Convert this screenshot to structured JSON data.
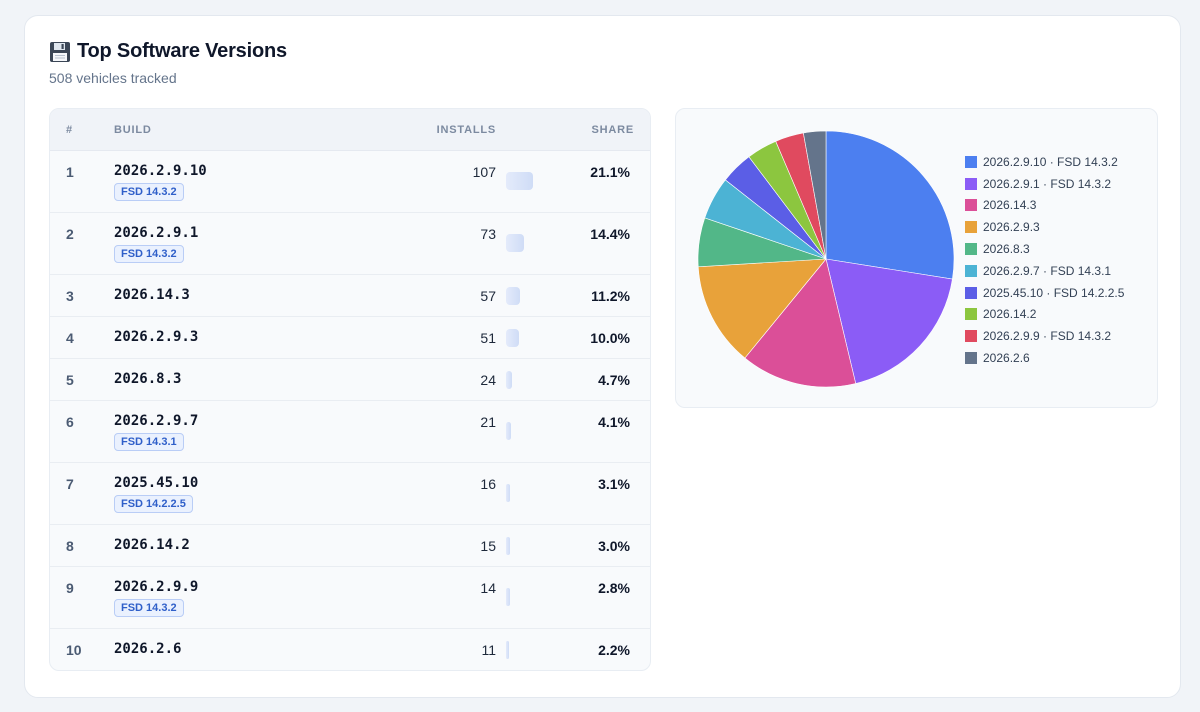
{
  "header": {
    "title": "Top Software Versions",
    "subtitle": "508 vehicles tracked",
    "icon": "floppy-disk-icon"
  },
  "table": {
    "columns": {
      "rank": "#",
      "build": "BUILD",
      "installs": "INSTALLS",
      "share": "SHARE"
    },
    "rows": [
      {
        "rank": "1",
        "build": "2026.2.9.10",
        "fsd": "FSD 14.3.2",
        "installs": "107",
        "share": "21.1%",
        "share_value": 21.1
      },
      {
        "rank": "2",
        "build": "2026.2.9.1",
        "fsd": "FSD 14.3.2",
        "installs": "73",
        "share": "14.4%",
        "share_value": 14.4
      },
      {
        "rank": "3",
        "build": "2026.14.3",
        "fsd": "",
        "installs": "57",
        "share": "11.2%",
        "share_value": 11.2
      },
      {
        "rank": "4",
        "build": "2026.2.9.3",
        "fsd": "",
        "installs": "51",
        "share": "10.0%",
        "share_value": 10.0
      },
      {
        "rank": "5",
        "build": "2026.8.3",
        "fsd": "",
        "installs": "24",
        "share": "4.7%",
        "share_value": 4.7
      },
      {
        "rank": "6",
        "build": "2026.2.9.7",
        "fsd": "FSD 14.3.1",
        "installs": "21",
        "share": "4.1%",
        "share_value": 4.1
      },
      {
        "rank": "7",
        "build": "2025.45.10",
        "fsd": "FSD 14.2.2.5",
        "installs": "16",
        "share": "3.1%",
        "share_value": 3.1
      },
      {
        "rank": "8",
        "build": "2026.14.2",
        "fsd": "",
        "installs": "15",
        "share": "3.0%",
        "share_value": 3.0
      },
      {
        "rank": "9",
        "build": "2026.2.9.9",
        "fsd": "FSD 14.3.2",
        "installs": "14",
        "share": "2.8%",
        "share_value": 2.8
      },
      {
        "rank": "10",
        "build": "2026.2.6",
        "fsd": "",
        "installs": "11",
        "share": "2.2%",
        "share_value": 2.2
      }
    ]
  },
  "chart_data": {
    "type": "pie",
    "legend_position": "right",
    "slices": [
      {
        "label": "2026.2.9.10 · FSD 14.3.2",
        "value": 107,
        "color": "#4c7ff0"
      },
      {
        "label": "2026.2.9.1 · FSD 14.3.2",
        "value": 73,
        "color": "#8b5cf6"
      },
      {
        "label": "2026.14.3",
        "value": 57,
        "color": "#db4f98"
      },
      {
        "label": "2026.2.9.3",
        "value": 51,
        "color": "#e8a23a"
      },
      {
        "label": "2026.8.3",
        "value": 24,
        "color": "#52b788"
      },
      {
        "label": "2026.2.9.7 · FSD 14.3.1",
        "value": 21,
        "color": "#4cb3d4"
      },
      {
        "label": "2025.45.10 · FSD 14.2.2.5",
        "value": 16,
        "color": "#5b5ee6"
      },
      {
        "label": "2026.14.2",
        "value": 15,
        "color": "#8cc63f"
      },
      {
        "label": "2026.2.9.9 · FSD 14.3.2",
        "value": 14,
        "color": "#e04a5f"
      },
      {
        "label": "2026.2.6",
        "value": 11,
        "color": "#64748b"
      }
    ]
  }
}
